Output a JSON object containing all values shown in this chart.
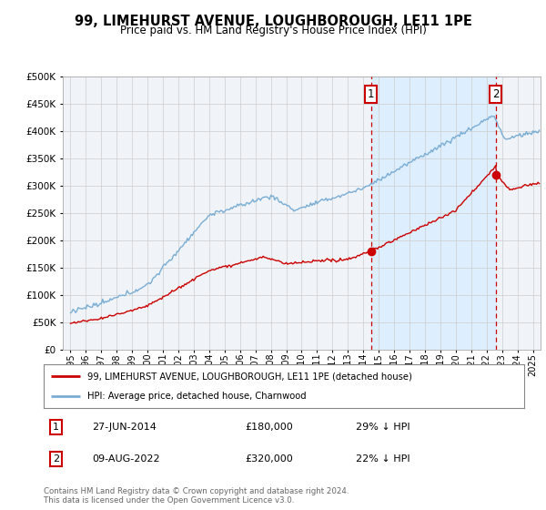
{
  "title": "99, LIMEHURST AVENUE, LOUGHBOROUGH, LE11 1PE",
  "subtitle": "Price paid vs. HM Land Registry's House Price Index (HPI)",
  "legend_line1": "99, LIMEHURST AVENUE, LOUGHBOROUGH, LE11 1PE (detached house)",
  "legend_line2": "HPI: Average price, detached house, Charnwood",
  "annotation1_date": "27-JUN-2014",
  "annotation1_price": "£180,000",
  "annotation1_hpi": "29% ↓ HPI",
  "annotation2_date": "09-AUG-2022",
  "annotation2_price": "£320,000",
  "annotation2_hpi": "22% ↓ HPI",
  "footer": "Contains HM Land Registry data © Crown copyright and database right 2024.\nThis data is licensed under the Open Government Licence v3.0.",
  "hpi_color": "#7aadd4",
  "price_color": "#cc0000",
  "annotation_color": "#cc0000",
  "shade_color": "#ddeeff",
  "background_color": "#ffffff",
  "grid_color": "#cccccc",
  "ylim": [
    0,
    500000
  ],
  "yticks": [
    0,
    50000,
    100000,
    150000,
    200000,
    250000,
    300000,
    350000,
    400000,
    450000,
    500000
  ],
  "xlim_start": 1994.5,
  "xlim_end": 2025.5,
  "sale1_x": 2014.5,
  "sale1_y": 180000,
  "sale2_x": 2022.583,
  "sale2_y": 320000
}
